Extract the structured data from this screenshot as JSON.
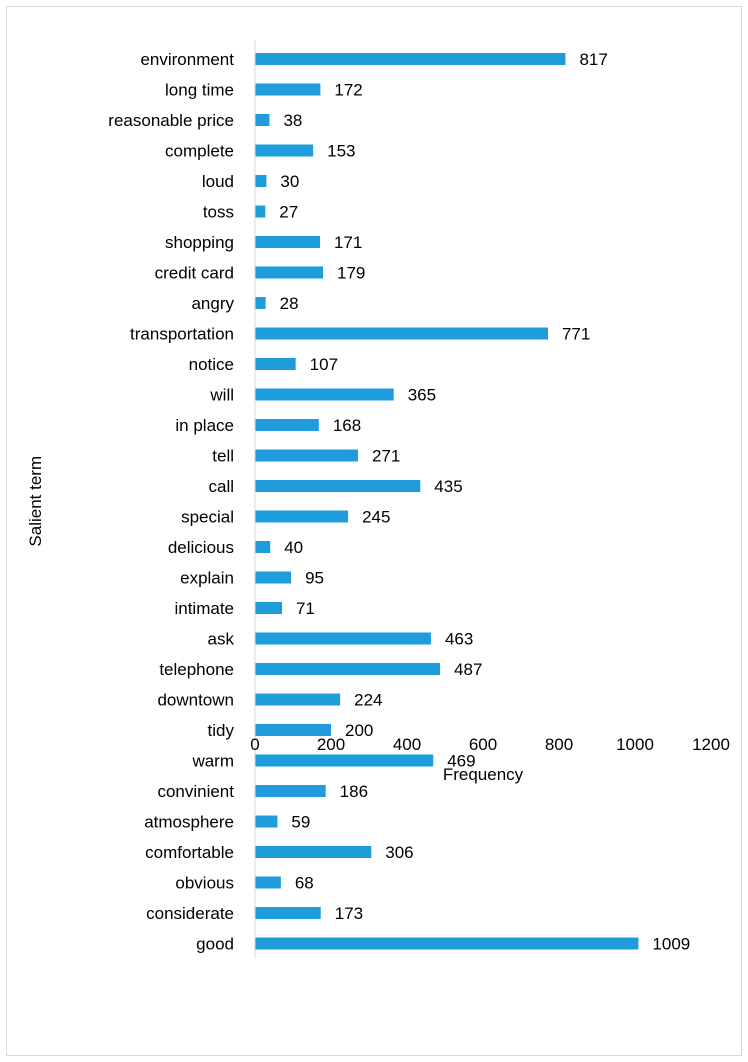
{
  "chart_data": {
    "type": "bar",
    "orientation": "horizontal",
    "xlabel": "Frequency",
    "ylabel": "Salient term",
    "xlim": [
      0,
      1200
    ],
    "x_ticks": [
      0,
      200,
      400,
      600,
      800,
      1000,
      1200
    ],
    "grid": false,
    "legend": "none",
    "bar_color": "#1e9cdb",
    "categories": [
      "environment",
      "long time",
      "reasonable price",
      "complete",
      "loud",
      "toss",
      "shopping",
      "credit card",
      "angry",
      "transportation",
      "notice",
      "will",
      "in place",
      "tell",
      "call",
      "special",
      "delicious",
      "explain",
      "intimate",
      "ask",
      "telephone",
      "downtown",
      "tidy",
      "warm",
      "convinient",
      "atmosphere",
      "comfortable",
      "obvious",
      "considerate",
      "good"
    ],
    "values": [
      817,
      172,
      38,
      153,
      30,
      27,
      171,
      179,
      28,
      771,
      107,
      365,
      168,
      271,
      435,
      245,
      40,
      95,
      71,
      463,
      487,
      224,
      200,
      469,
      186,
      59,
      306,
      68,
      173,
      1009
    ]
  }
}
